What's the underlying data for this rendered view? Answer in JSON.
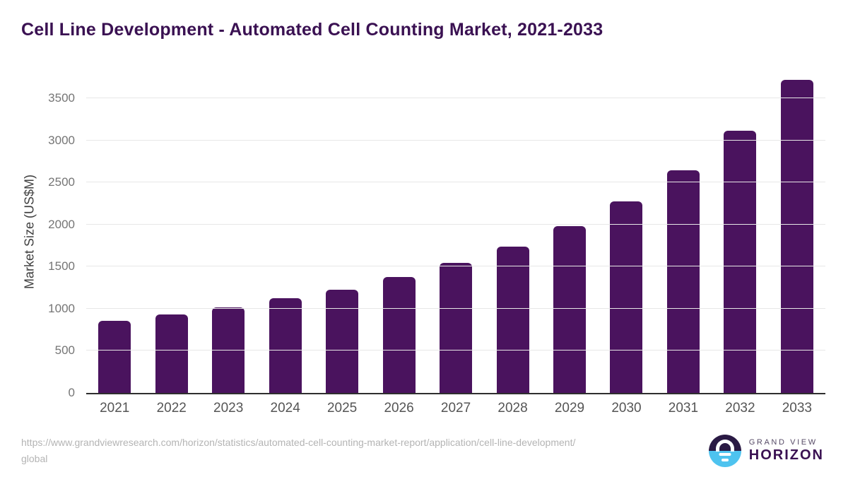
{
  "title": "Cell Line Development - Automated Cell Counting Market, 2021-2033",
  "chart_data": {
    "type": "bar",
    "title": "Cell Line Development - Automated Cell Counting Market, 2021-2033",
    "categories": [
      "2021",
      "2022",
      "2023",
      "2024",
      "2025",
      "2026",
      "2027",
      "2028",
      "2029",
      "2030",
      "2031",
      "2032",
      "2033"
    ],
    "values": [
      855,
      935,
      1015,
      1125,
      1230,
      1375,
      1545,
      1740,
      1985,
      2275,
      2645,
      3120,
      3720
    ],
    "xlabel": "",
    "ylabel": "Market Size (US$M)",
    "yticks": [
      0,
      500,
      1000,
      1500,
      2000,
      2500,
      3000,
      3500
    ],
    "ylim": [
      0,
      3830
    ],
    "grid": true,
    "legend": false,
    "bar_color": "#4a135e"
  },
  "colors": {
    "title": "#3a1152",
    "bar": "#4a135e",
    "gridline": "#e7e7e7",
    "axis": "#2f2f2f",
    "tick_label": "#757575",
    "x_label": "#555555",
    "y_axis_title": "#3f3f3f",
    "source_text": "#b4b4b4",
    "logo_dark": "#2a1a44",
    "logo_blue": "#4ec3ef"
  },
  "footer": {
    "url_line1": "https://www.grandviewresearch.com/horizon/statistics/automated-cell-counting-market-report/application/cell-line-development/",
    "url_line2": "global",
    "logo_top": "GRAND VIEW",
    "logo_bottom": "HORIZON"
  }
}
